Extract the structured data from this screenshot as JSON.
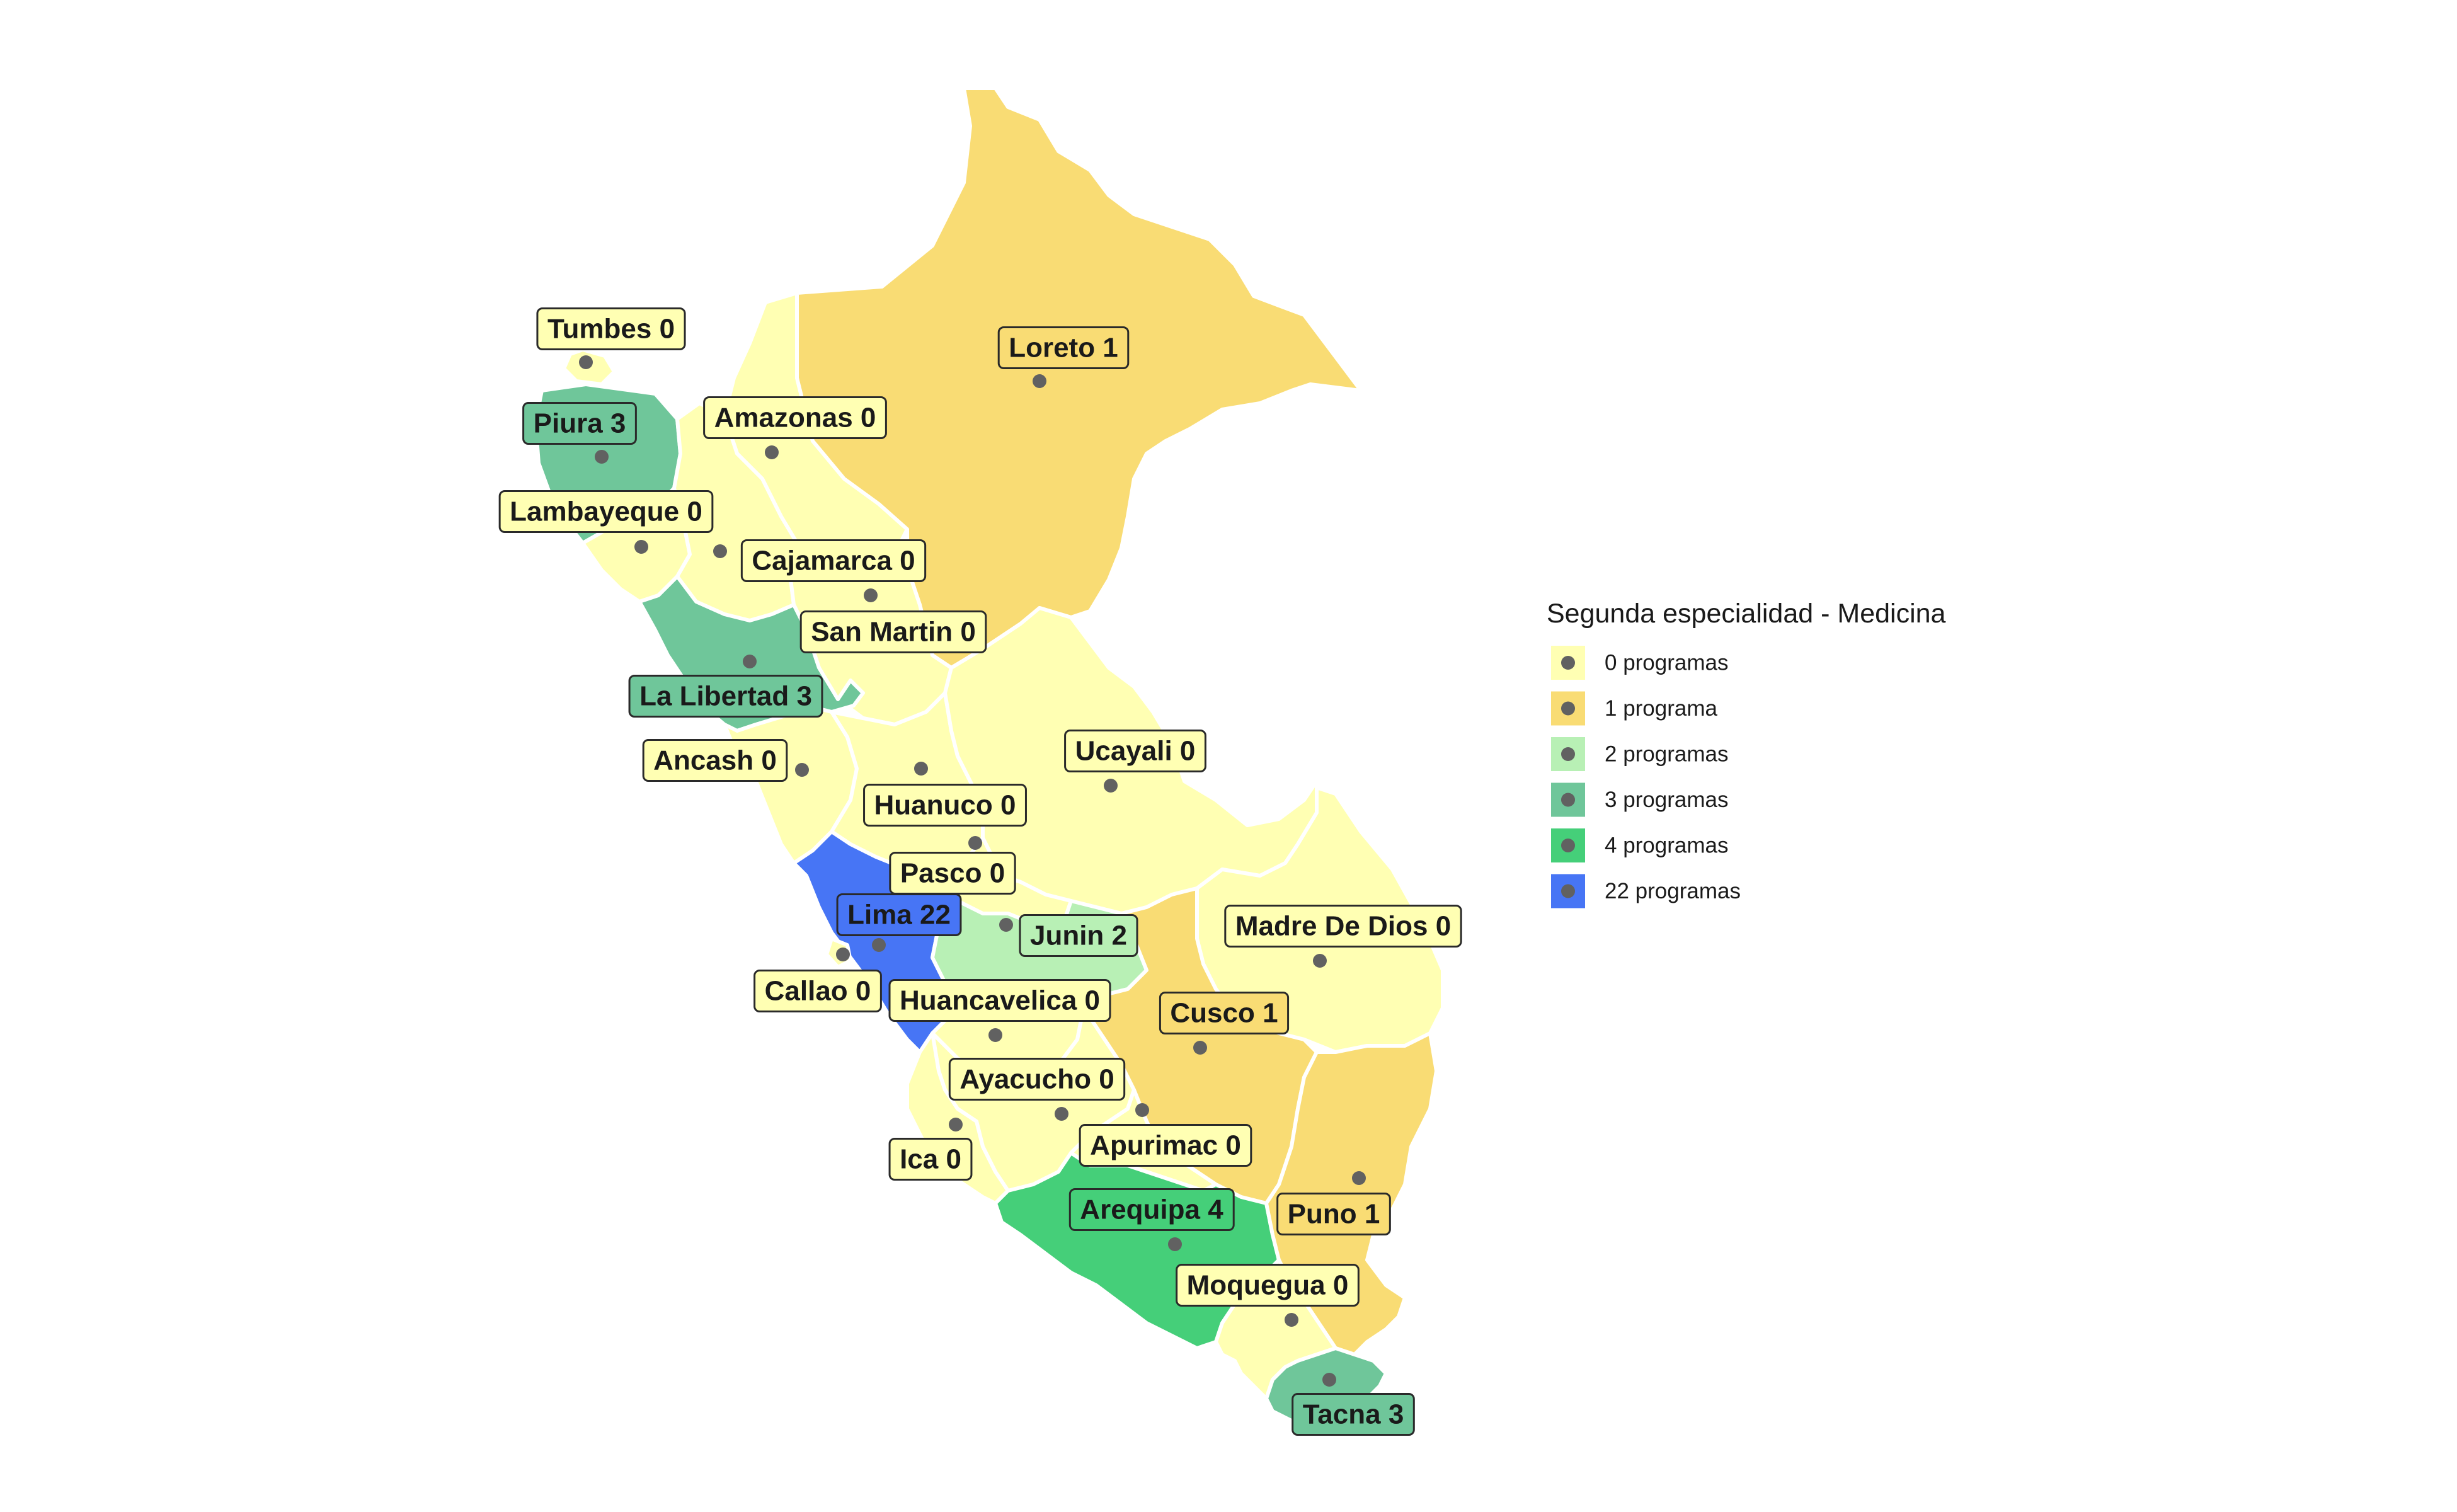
{
  "legend": {
    "title": "Segunda especialidad - Medicina",
    "items": [
      {
        "label": "0 programas",
        "color": "#FFFFB3"
      },
      {
        "label": "1 programa",
        "color": "#F9DC74"
      },
      {
        "label": "2 programas",
        "color": "#B8F0B5"
      },
      {
        "label": "3 programas",
        "color": "#6FC69A"
      },
      {
        "label": "4 programas",
        "color": "#45CF79"
      },
      {
        "label": "22 programas",
        "color": "#4775F5"
      }
    ]
  },
  "colors": {
    "border": "#FFFFFF",
    "marker": "#616161",
    "background": "#FFFFFF"
  },
  "regions": [
    {
      "id": "tumbes",
      "label": "Tumbes 0",
      "programs": 0
    },
    {
      "id": "piura",
      "label": "Piura 3",
      "programs": 3
    },
    {
      "id": "lambayeque",
      "label": "Lambayeque 0",
      "programs": 0
    },
    {
      "id": "amazonas",
      "label": "Amazonas 0",
      "programs": 0
    },
    {
      "id": "cajamarca",
      "label": "Cajamarca 0",
      "programs": 0
    },
    {
      "id": "loreto",
      "label": "Loreto 1",
      "programs": 1
    },
    {
      "id": "san-martin",
      "label": "San Martin 0",
      "programs": 0
    },
    {
      "id": "la-libertad",
      "label": "La Libertad 3",
      "programs": 3
    },
    {
      "id": "ancash",
      "label": "Ancash 0",
      "programs": 0
    },
    {
      "id": "huanuco",
      "label": "Huanuco 0",
      "programs": 0
    },
    {
      "id": "ucayali",
      "label": "Ucayali 0",
      "programs": 0
    },
    {
      "id": "pasco",
      "label": "Pasco 0",
      "programs": 0
    },
    {
      "id": "lima",
      "label": "Lima 22",
      "programs": 22
    },
    {
      "id": "callao",
      "label": "Callao 0",
      "programs": 0
    },
    {
      "id": "junin",
      "label": "Junin 2",
      "programs": 2
    },
    {
      "id": "madre-de-dios",
      "label": "Madre De Dios 0",
      "programs": 0
    },
    {
      "id": "huancavelica",
      "label": "Huancavelica 0",
      "programs": 0
    },
    {
      "id": "cusco",
      "label": "Cusco 1",
      "programs": 1
    },
    {
      "id": "ayacucho",
      "label": "Ayacucho 0",
      "programs": 0
    },
    {
      "id": "ica",
      "label": "Ica 0",
      "programs": 0
    },
    {
      "id": "apurimac",
      "label": "Apurimac 0",
      "programs": 0
    },
    {
      "id": "arequipa",
      "label": "Arequipa 4",
      "programs": 4
    },
    {
      "id": "puno",
      "label": "Puno 1",
      "programs": 1
    },
    {
      "id": "moquegua",
      "label": "Moquegua 0",
      "programs": 0
    },
    {
      "id": "tacna",
      "label": "Tacna 3",
      "programs": 3
    }
  ]
}
